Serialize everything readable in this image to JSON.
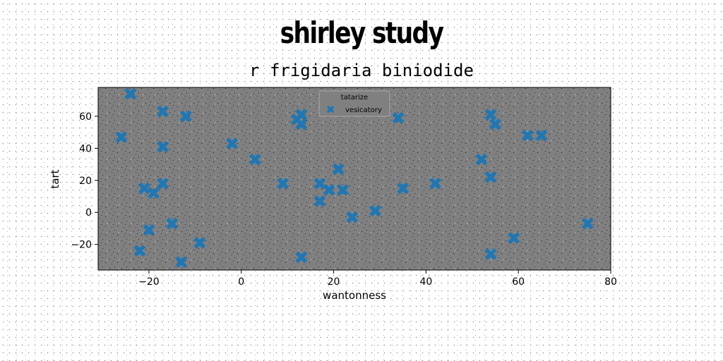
{
  "title": "shirley study",
  "subtitle": "r frigidaria biniodide",
  "chart_data": {
    "type": "scatter",
    "xlabel": "wantonness",
    "ylabel": "tart",
    "xlim": [
      -31,
      80
    ],
    "ylim": [
      -36,
      78
    ],
    "xticks": [
      -20,
      0,
      20,
      40,
      60,
      80
    ],
    "yticks": [
      -20,
      0,
      20,
      40,
      60
    ],
    "xtick_labels": [
      "−20",
      "0",
      "20",
      "40",
      "60",
      "80"
    ],
    "ytick_labels": [
      "−20",
      "0",
      "20",
      "40",
      "60"
    ],
    "grid": false,
    "legend": {
      "title": "tatarize",
      "placement": "top-center"
    },
    "series": [
      {
        "name": "vesicatory",
        "marker": "X",
        "color": "#1f77b4",
        "points": [
          {
            "x": -24,
            "y": 74
          },
          {
            "x": -26,
            "y": 47
          },
          {
            "x": -17,
            "y": 63
          },
          {
            "x": -12,
            "y": 60
          },
          {
            "x": -17,
            "y": 41
          },
          {
            "x": -21,
            "y": 15
          },
          {
            "x": -19,
            "y": 12
          },
          {
            "x": -17,
            "y": 18
          },
          {
            "x": -20,
            "y": -11
          },
          {
            "x": -15,
            "y": -7
          },
          {
            "x": -22,
            "y": -24
          },
          {
            "x": -13,
            "y": -31
          },
          {
            "x": -9,
            "y": -19
          },
          {
            "x": -2,
            "y": 43
          },
          {
            "x": 3,
            "y": 33
          },
          {
            "x": 9,
            "y": 18
          },
          {
            "x": 12,
            "y": 58
          },
          {
            "x": 13,
            "y": 61
          },
          {
            "x": 13,
            "y": 55
          },
          {
            "x": 13,
            "y": -28
          },
          {
            "x": 17,
            "y": 18
          },
          {
            "x": 17,
            "y": 7
          },
          {
            "x": 19,
            "y": 14
          },
          {
            "x": 21,
            "y": 27
          },
          {
            "x": 22,
            "y": 14
          },
          {
            "x": 24,
            "y": -3
          },
          {
            "x": 29,
            "y": 1
          },
          {
            "x": 34,
            "y": 59
          },
          {
            "x": 35,
            "y": 15
          },
          {
            "x": 42,
            "y": 18
          },
          {
            "x": 52,
            "y": 33
          },
          {
            "x": 54,
            "y": 61
          },
          {
            "x": 55,
            "y": 55
          },
          {
            "x": 54,
            "y": 22
          },
          {
            "x": 54,
            "y": -26
          },
          {
            "x": 59,
            "y": -16
          },
          {
            "x": 62,
            "y": 48
          },
          {
            "x": 65,
            "y": 48
          },
          {
            "x": 75,
            "y": -7
          }
        ]
      }
    ]
  }
}
